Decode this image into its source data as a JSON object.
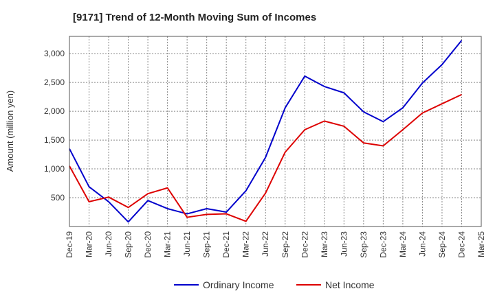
{
  "chart_data": {
    "type": "line",
    "title": "[9171]  Trend of 12-Month Moving Sum of Incomes",
    "xlabel": "",
    "ylabel": "Amount (million yen)",
    "ylim": [
      0,
      3300
    ],
    "yticks": [
      500,
      1000,
      1500,
      2000,
      2500,
      3000
    ],
    "ytick_labels": [
      "500",
      "1,000",
      "1,500",
      "2,000",
      "2,500",
      "3,000"
    ],
    "grid": true,
    "legend_position": "bottom-center",
    "categories": [
      "Dec-19",
      "Mar-20",
      "Jun-20",
      "Sep-20",
      "Dec-20",
      "Mar-21",
      "Jun-21",
      "Sep-21",
      "Dec-21",
      "Mar-22",
      "Jun-22",
      "Sep-22",
      "Dec-22",
      "Mar-23",
      "Jun-23",
      "Sep-23",
      "Dec-23",
      "Mar-24",
      "Jun-24",
      "Sep-24",
      "Dec-24",
      "Mar-25"
    ],
    "series": [
      {
        "name": "Ordinary Income",
        "color": "#0000cc",
        "values": [
          1350,
          690,
          430,
          80,
          450,
          310,
          220,
          310,
          250,
          620,
          1200,
          2060,
          2610,
          2430,
          2320,
          1990,
          1820,
          2060,
          2490,
          2810,
          3230,
          null
        ]
      },
      {
        "name": "Net Income",
        "color": "#dd0000",
        "values": [
          1050,
          430,
          510,
          330,
          570,
          670,
          160,
          210,
          220,
          90,
          580,
          1290,
          1680,
          1830,
          1740,
          1450,
          1400,
          1680,
          1970,
          2130,
          2290,
          null
        ]
      }
    ]
  }
}
